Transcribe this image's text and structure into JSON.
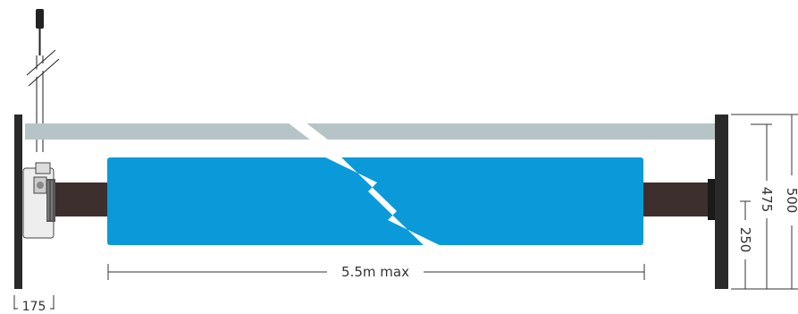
{
  "diagram": {
    "width_label": "5.5m max",
    "left_offset_label": "175",
    "heights": {
      "outer": "500",
      "middle": "475",
      "inner": "250"
    }
  },
  "colors": {
    "fabric": "#0a9ad9",
    "headrail": "#b7c4c7",
    "tube": "#3c2f2d",
    "bracket": "#2a2a2a",
    "dimension": "#333333",
    "cord": "#222222"
  }
}
